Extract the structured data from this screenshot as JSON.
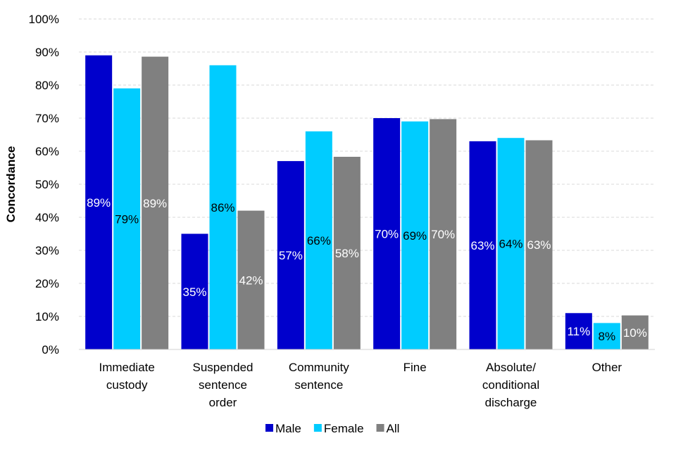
{
  "chart_data": {
    "type": "bar",
    "title": "",
    "xlabel": "",
    "ylabel": "Concordance",
    "ylim": [
      0,
      100
    ],
    "yticks": [
      "0%",
      "10%",
      "20%",
      "30%",
      "40%",
      "50%",
      "60%",
      "70%",
      "80%",
      "90%",
      "100%"
    ],
    "grid": true,
    "legend_position": "bottom",
    "categories": [
      [
        "Immediate",
        "custody"
      ],
      [
        "Suspended",
        "sentence",
        "order"
      ],
      [
        "Community",
        "sentence"
      ],
      [
        "Fine"
      ],
      [
        "Absolute/",
        "conditional",
        "discharge"
      ],
      [
        "Other"
      ]
    ],
    "series": [
      {
        "name": "Male",
        "color": "#0000CC",
        "label_color": "#FFFFFF",
        "values": [
          89,
          35,
          57,
          70,
          63,
          11
        ],
        "labels": [
          "89%",
          "35%",
          "57%",
          "70%",
          "63%",
          "11%"
        ]
      },
      {
        "name": "Female",
        "color": "#00CCFF",
        "label_color": "#000000",
        "values": [
          79,
          86,
          66,
          69,
          64,
          8
        ],
        "labels": [
          "79%",
          "86%",
          "66%",
          "69%",
          "64%",
          "8%"
        ]
      },
      {
        "name": "All",
        "color": "#808080",
        "label_color": "#FFFFFF",
        "values": [
          88.6,
          42,
          58.3,
          69.7,
          63.3,
          10.3
        ],
        "labels": [
          "89%",
          "42%",
          "58%",
          "70%",
          "63%",
          "10%"
        ]
      }
    ]
  }
}
